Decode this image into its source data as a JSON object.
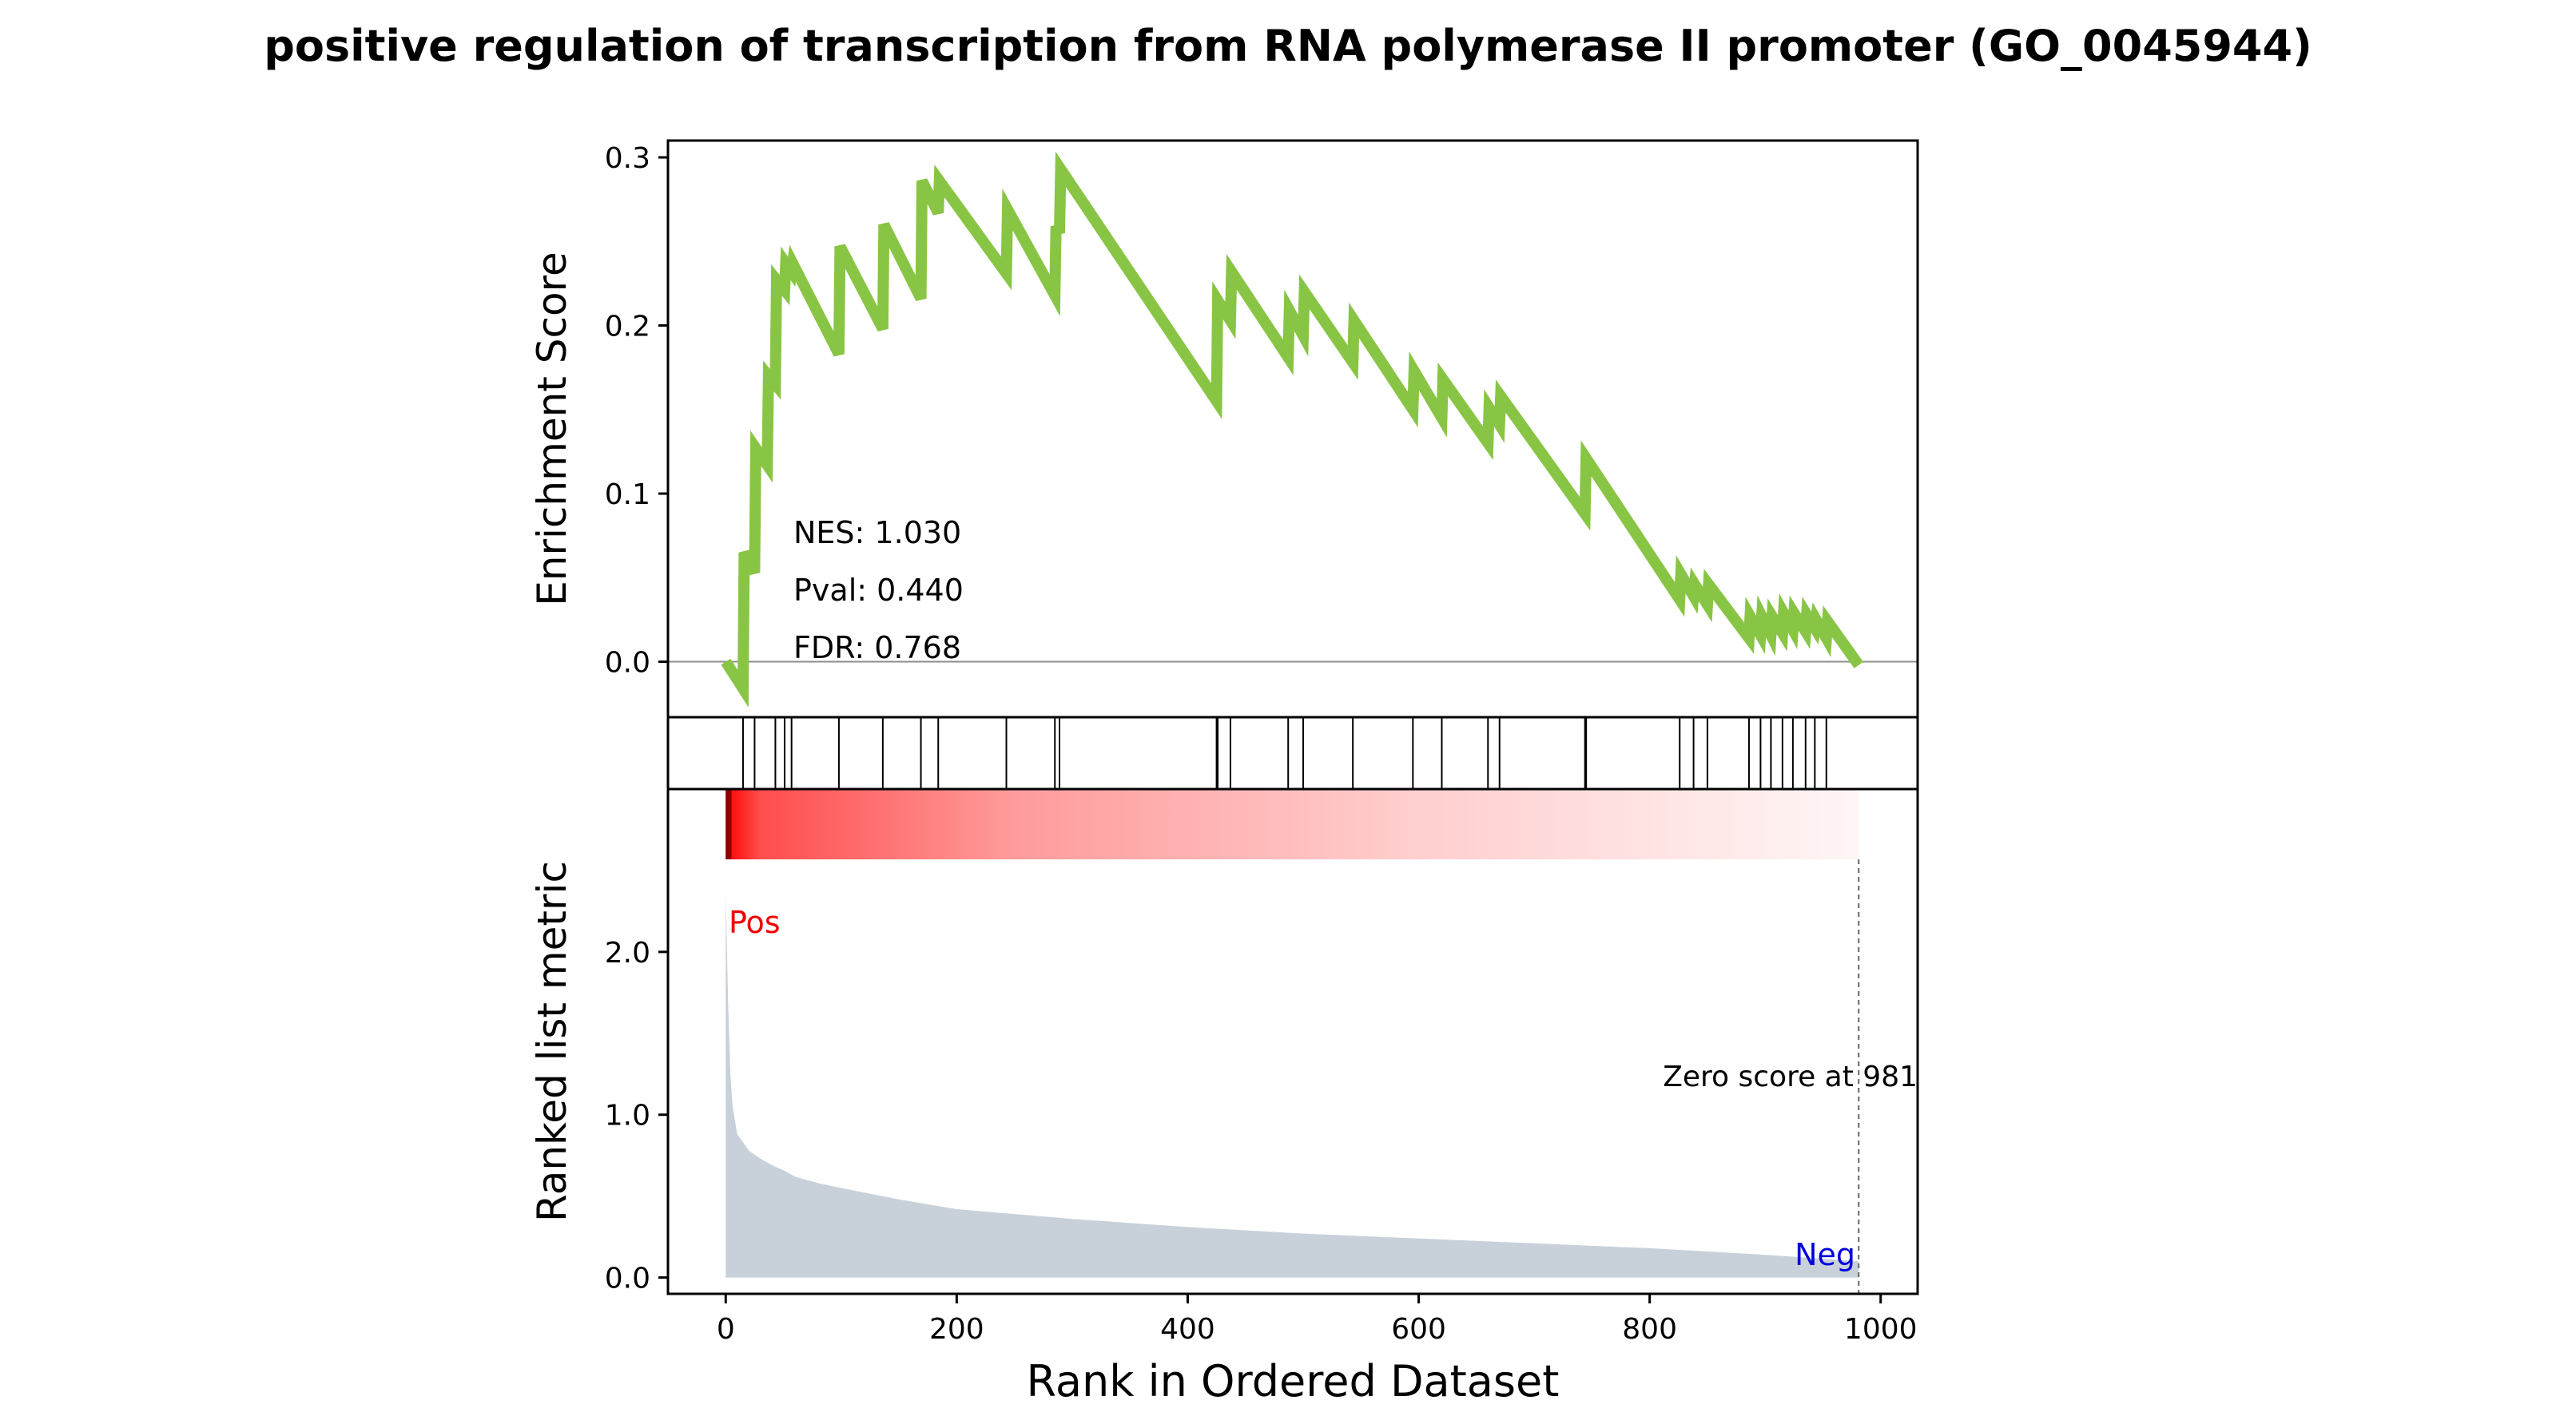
{
  "chart_data": {
    "type": "line",
    "title": "positive regulation of transcription from RNA polymerase II promoter (GO_0045944)",
    "xlabel": "Rank in Ordered Dataset",
    "xlim": [
      -50,
      1032
    ],
    "x_ticks": [
      0,
      200,
      400,
      600,
      800,
      1000
    ],
    "x_tick_labels": [
      "0",
      "200",
      "400",
      "600",
      "800",
      "1000"
    ],
    "enrichment_panel": {
      "ylabel": "Enrichment Score",
      "ylim": [
        -0.033,
        0.31
      ],
      "y_ticks": [
        0.0,
        0.1,
        0.2,
        0.3
      ],
      "y_tick_labels": [
        "0.0",
        "0.1",
        "0.2",
        "0.3"
      ],
      "line_color": "#88C544",
      "zero_line_color": "#8c8c8c",
      "annotations": [
        "NES: 1.030",
        "Pval: 0.440",
        "FDR: 0.768"
      ],
      "series": [
        {
          "x": [
            0,
            15,
            16,
            25,
            26,
            36,
            37,
            43,
            44,
            51,
            52,
            57,
            58,
            98,
            99,
            136,
            137,
            169,
            170,
            184,
            185,
            243,
            244,
            285,
            286,
            289,
            290,
            425,
            426,
            437,
            438,
            487,
            488,
            500,
            501,
            543,
            544,
            595,
            596,
            620,
            621,
            660,
            661,
            670,
            671,
            744,
            745,
            826,
            827,
            838,
            839,
            850,
            851,
            886,
            887,
            896,
            897,
            905,
            906,
            915,
            916,
            924,
            925,
            935,
            936,
            943,
            944,
            953,
            954,
            981
          ],
          "y": [
            0.0,
            -0.016,
            0.065,
            0.053,
            0.127,
            0.117,
            0.17,
            0.165,
            0.227,
            0.221,
            0.237,
            0.232,
            0.237,
            0.183,
            0.247,
            0.198,
            0.26,
            0.216,
            0.286,
            0.267,
            0.286,
            0.231,
            0.269,
            0.218,
            0.259,
            0.255,
            0.293,
            0.155,
            0.215,
            0.203,
            0.232,
            0.181,
            0.209,
            0.194,
            0.22,
            0.178,
            0.203,
            0.15,
            0.173,
            0.145,
            0.168,
            0.13,
            0.151,
            0.141,
            0.158,
            0.088,
            0.121,
            0.037,
            0.052,
            0.039,
            0.046,
            0.034,
            0.046,
            0.014,
            0.027,
            0.016,
            0.027,
            0.016,
            0.027,
            0.017,
            0.029,
            0.019,
            0.029,
            0.018,
            0.028,
            0.02,
            0.025,
            0.014,
            0.024,
            -0.002
          ]
        }
      ]
    },
    "hits_panel": {
      "hit_positions": [
        15,
        25,
        43,
        51,
        57,
        98,
        136,
        169,
        184,
        243,
        285,
        289,
        425,
        426,
        437,
        487,
        500,
        543,
        595,
        620,
        660,
        670,
        744,
        745,
        826,
        838,
        850,
        886,
        896,
        905,
        915,
        924,
        935,
        943,
        953
      ]
    },
    "heatmap_bar": {
      "from_color": "#ff0000",
      "to_color": "#ffffff",
      "x_range": [
        0,
        981
      ]
    },
    "ranked_panel": {
      "ylabel": "Ranked list metric",
      "ylim": [
        -0.1,
        3.0
      ],
      "y_ticks": [
        0.0,
        1.0,
        2.0
      ],
      "y_tick_labels": [
        "0.0",
        "1.0",
        "2.0"
      ],
      "fill_color": "#c8d1da",
      "pos_label": "Pos",
      "pos_color": "#ee0000",
      "neg_label": "Neg",
      "neg_color": "#0000dd",
      "zero_score_label": "Zero score at 981",
      "zero_score_rank": 981,
      "metric_x": [
        0,
        2,
        4,
        6,
        10,
        15,
        20,
        30,
        40,
        50,
        60,
        80,
        100,
        150,
        200,
        250,
        300,
        400,
        500,
        600,
        700,
        800,
        900,
        981
      ],
      "metric_y": [
        2.35,
        1.7,
        1.25,
        1.05,
        0.88,
        0.83,
        0.78,
        0.73,
        0.69,
        0.66,
        0.62,
        0.58,
        0.55,
        0.48,
        0.42,
        0.39,
        0.36,
        0.31,
        0.27,
        0.24,
        0.21,
        0.18,
        0.14,
        0.1
      ]
    }
  }
}
